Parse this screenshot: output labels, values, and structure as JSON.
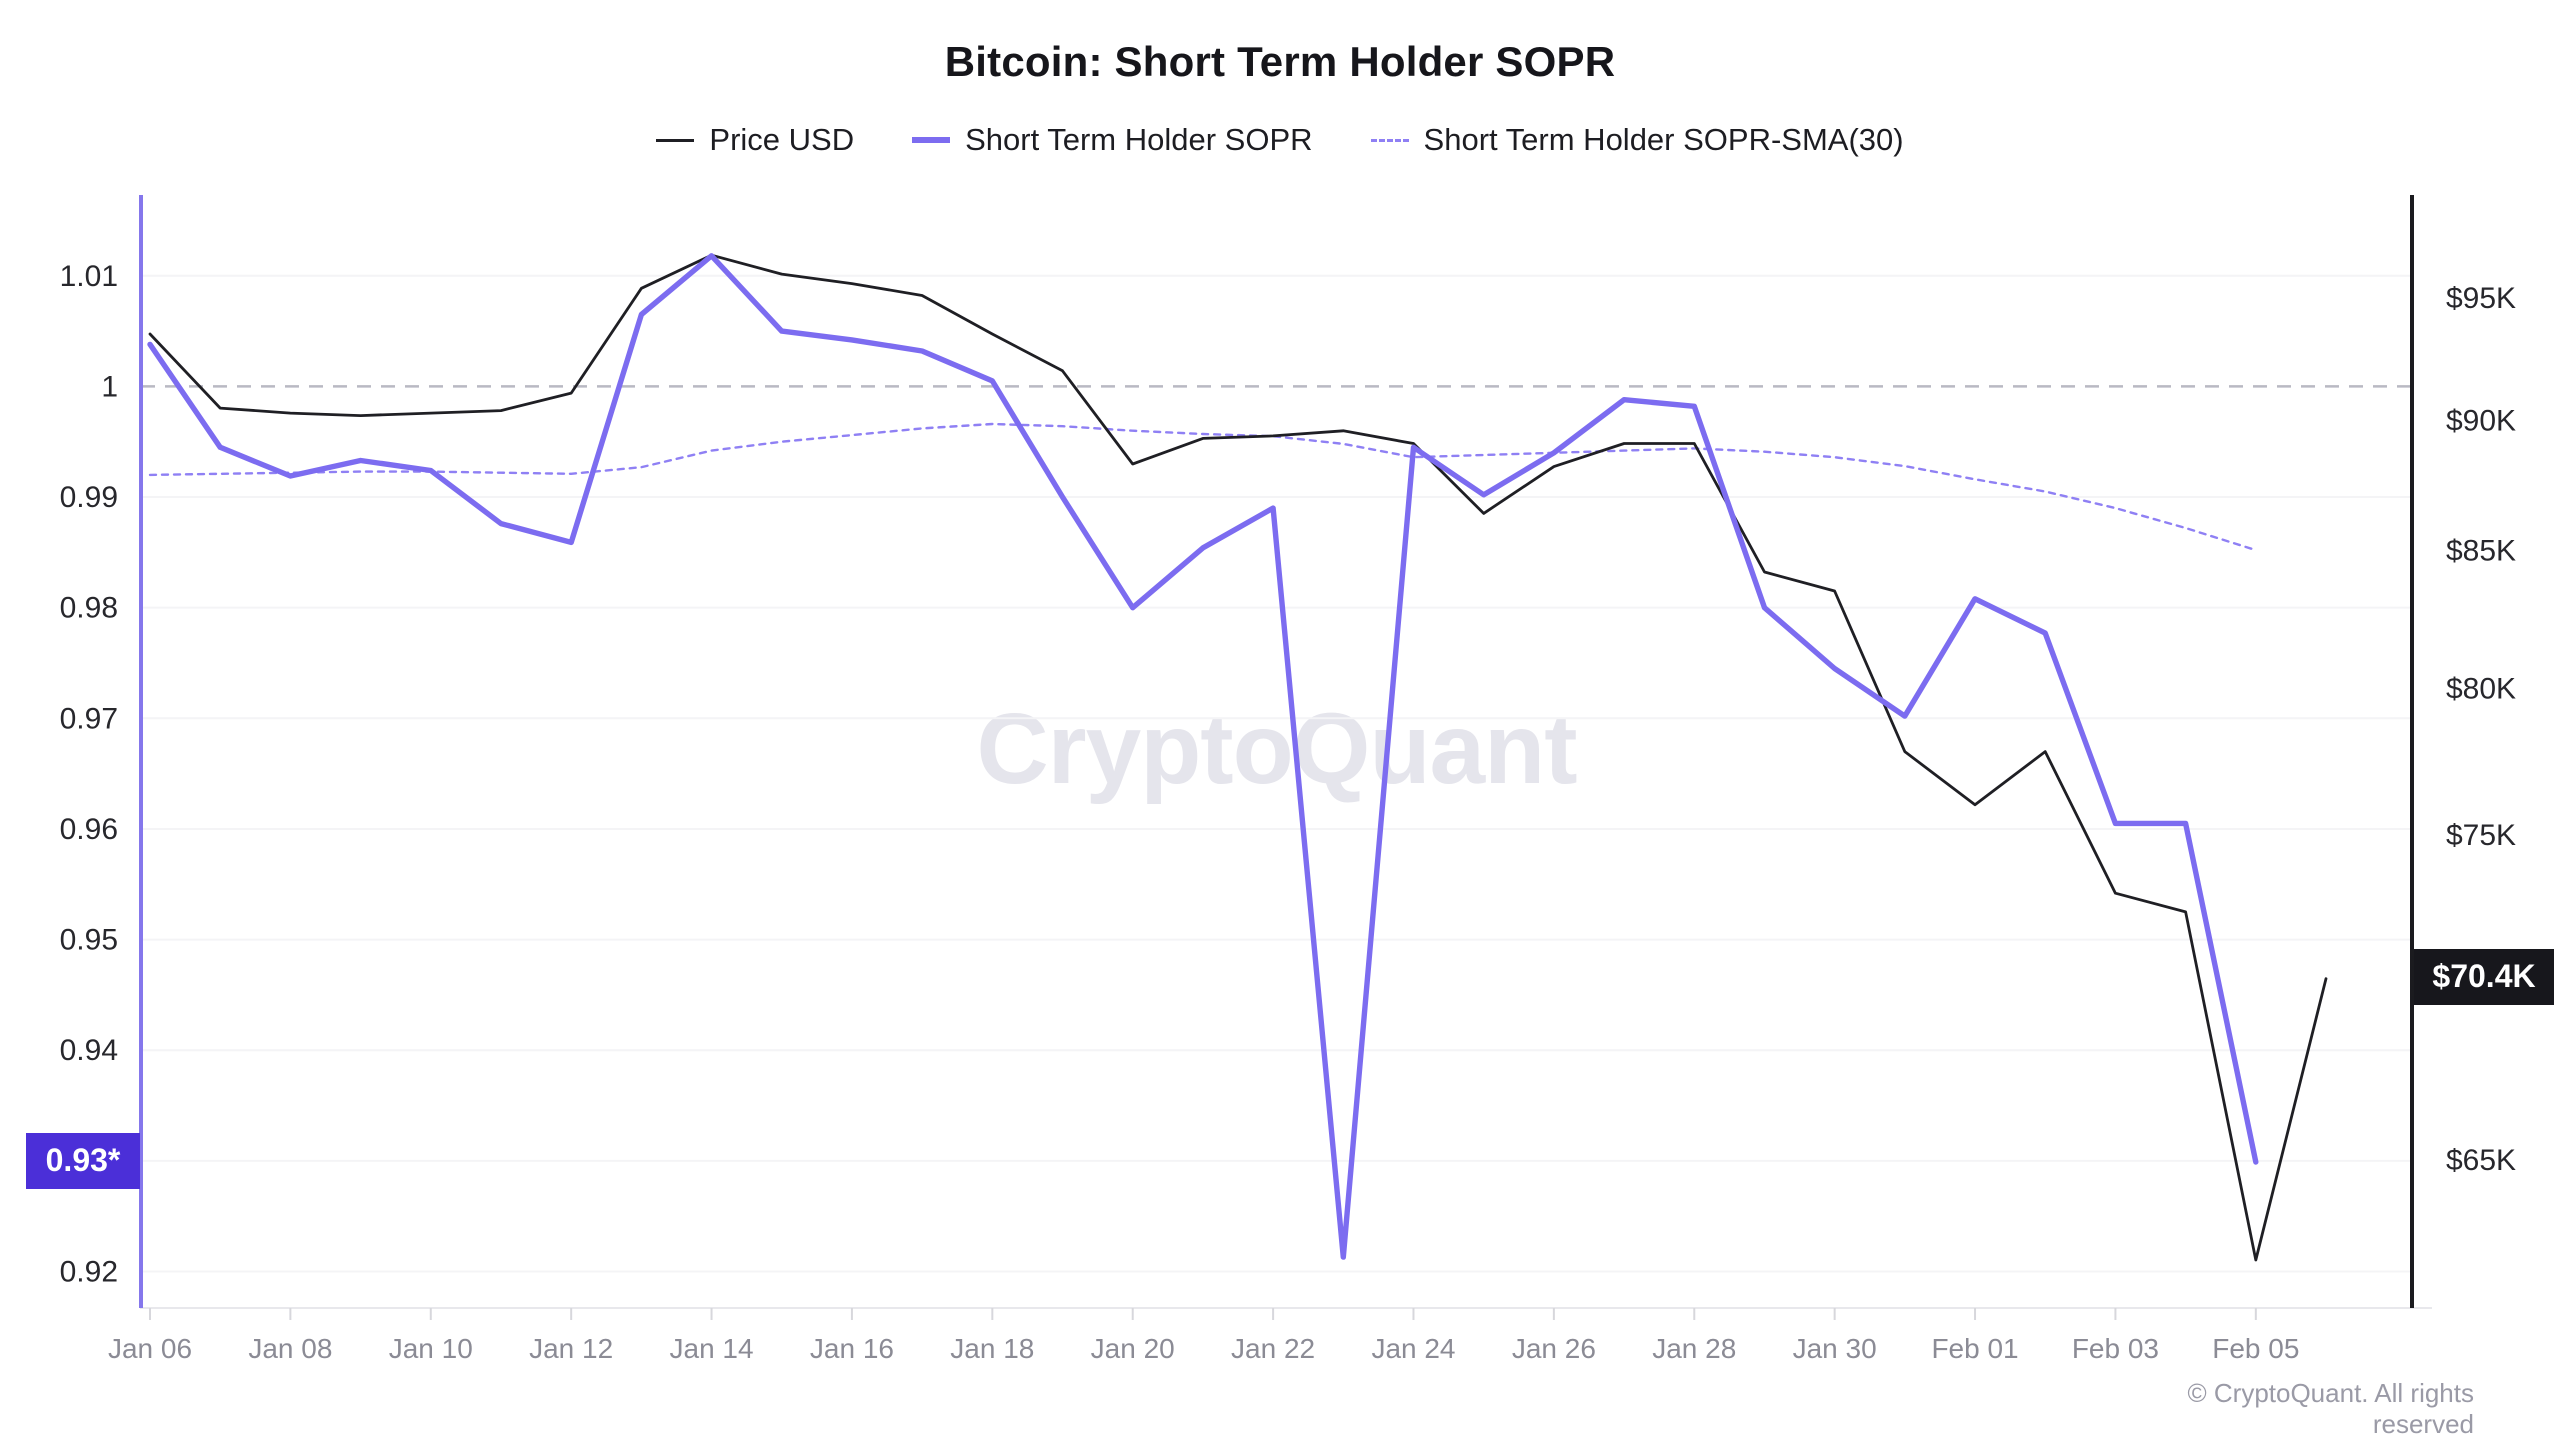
{
  "title": "Bitcoin: Short Term Holder SOPR",
  "watermark": "CryptoQuant",
  "footer": "© CryptoQuant. All rights reserved",
  "colors": {
    "price_line": "#1f1f24",
    "sopr_line": "#7c6cf0",
    "sma_line": "#8f80f4",
    "left_axis_line": "#8577ec",
    "right_axis_line": "#1b1b1f",
    "reference_dash": "#b9b9c3",
    "gridline": "#f4f4f6",
    "left_badge_bg": "#4b2fd8",
    "right_badge_bg": "#17171c",
    "x_label": "#8b8b95",
    "y_label": "#27272c"
  },
  "legend": [
    {
      "label": "Price USD",
      "marker": "line",
      "color": "#1f1f24",
      "thickness": 3
    },
    {
      "label": "Short Term Holder SOPR",
      "marker": "line",
      "color": "#7c6cf0",
      "thickness": 6
    },
    {
      "label": "Short Term Holder SOPR-SMA(30)",
      "marker": "dashed-line",
      "color": "#8f80f4",
      "thickness": 3
    }
  ],
  "left_axis": {
    "badge": "0.93*",
    "badge_value": 0.93,
    "ticks": [
      {
        "value": 1.01,
        "label": "1.01"
      },
      {
        "value": 1.0,
        "label": "1"
      },
      {
        "value": 0.99,
        "label": "0.99"
      },
      {
        "value": 0.98,
        "label": "0.98"
      },
      {
        "value": 0.97,
        "label": "0.97"
      },
      {
        "value": 0.96,
        "label": "0.96"
      },
      {
        "value": 0.95,
        "label": "0.95"
      },
      {
        "value": 0.94,
        "label": "0.94"
      },
      {
        "value": 0.93,
        "label": "0.93"
      },
      {
        "value": 0.92,
        "label": "0.92"
      }
    ]
  },
  "right_axis": {
    "badge": "$70.4K",
    "badge_value": 70.4,
    "ticks": [
      {
        "value": 95,
        "label": "$95K"
      },
      {
        "value": 90,
        "label": "$90K"
      },
      {
        "value": 85,
        "label": "$85K"
      },
      {
        "value": 80,
        "label": "$80K"
      },
      {
        "value": 75,
        "label": "$75K"
      },
      {
        "value": 70,
        "label": "$70K"
      },
      {
        "value": 65,
        "label": "$65K"
      }
    ]
  },
  "x_axis": {
    "labels": [
      "Jan 06",
      "Jan 08",
      "Jan 10",
      "Jan 12",
      "Jan 14",
      "Jan 16",
      "Jan 18",
      "Jan 20",
      "Jan 22",
      "Jan 24",
      "Jan 26",
      "Jan 28",
      "Jan 30",
      "Feb 01",
      "Feb 03",
      "Feb 05"
    ],
    "label_step_days": 2
  },
  "chart_data": {
    "type": "line",
    "title": "Bitcoin: Short Term Holder SOPR",
    "x": [
      "Jan 06",
      "Jan 07",
      "Jan 08",
      "Jan 09",
      "Jan 10",
      "Jan 11",
      "Jan 12",
      "Jan 13",
      "Jan 14",
      "Jan 15",
      "Jan 16",
      "Jan 17",
      "Jan 18",
      "Jan 19",
      "Jan 20",
      "Jan 21",
      "Jan 22",
      "Jan 23",
      "Jan 24",
      "Jan 25",
      "Jan 26",
      "Jan 27",
      "Jan 28",
      "Jan 29",
      "Jan 30",
      "Jan 31",
      "Feb 01",
      "Feb 02",
      "Feb 03",
      "Feb 04",
      "Feb 05",
      "Feb 06"
    ],
    "left_ylim": [
      0.9167,
      1.0173
    ],
    "right_ylim_kusd": [
      60.9,
      99.4
    ],
    "right_axis_scale": "log",
    "reference_line_left_value": 1.0,
    "grid": "horizontal-left-ticks",
    "legend_position": "top-center",
    "series": [
      {
        "name": "Price USD",
        "axis": "right",
        "unit": "K USD",
        "style": "solid",
        "values": [
          93.5,
          90.5,
          90.3,
          90.2,
          90.3,
          90.4,
          91.1,
          95.4,
          96.8,
          96.0,
          95.6,
          95.1,
          93.5,
          92.0,
          88.3,
          89.3,
          89.4,
          89.6,
          89.1,
          86.4,
          88.2,
          89.1,
          89.1,
          84.2,
          83.5,
          77.8,
          76.0,
          77.8,
          73.1,
          72.5,
          62.2,
          70.4
        ]
      },
      {
        "name": "Short Term Holder SOPR",
        "axis": "left",
        "style": "solid",
        "values": [
          1.0038,
          0.9945,
          0.9919,
          0.9933,
          0.9924,
          0.9876,
          0.9859,
          1.0065,
          1.0118,
          1.005,
          1.0042,
          1.0032,
          1.0005,
          0.99,
          0.98,
          0.9854,
          0.989,
          0.9213,
          0.9945,
          0.9902,
          0.994,
          0.9988,
          0.9982,
          0.98,
          0.9745,
          0.9702,
          0.9808,
          0.9777,
          0.9605,
          0.9605,
          0.9299,
          null
        ]
      },
      {
        "name": "Short Term Holder SOPR-SMA(30)",
        "axis": "left",
        "style": "dashed",
        "values": [
          0.992,
          0.9921,
          0.9922,
          0.9923,
          0.9923,
          0.9922,
          0.9921,
          0.9927,
          0.9942,
          0.995,
          0.9956,
          0.9962,
          0.9966,
          0.9964,
          0.996,
          0.9957,
          0.9955,
          0.9948,
          0.9936,
          0.9938,
          0.994,
          0.9942,
          0.9944,
          0.9941,
          0.9936,
          0.9928,
          0.9916,
          0.9905,
          0.989,
          0.9872,
          0.9852,
          null
        ]
      }
    ]
  }
}
